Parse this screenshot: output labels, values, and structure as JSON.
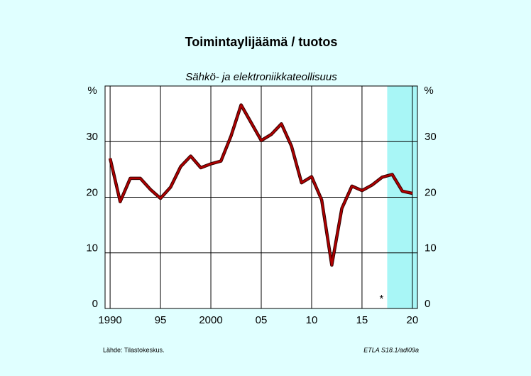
{
  "chart_data": {
    "type": "line",
    "title": "Toimintaylijäämä / tuotos",
    "subtitle": "Sähkö- ja elektroniikkateollisuus",
    "y_unit_left": "%",
    "y_unit_right": "%",
    "annotation": "*",
    "source": "Lähde:  Tilastokeskus.",
    "footnote": "ETLA S18.1/adl09a",
    "x": [
      1990,
      1991,
      1992,
      1993,
      1994,
      1995,
      1996,
      1997,
      1998,
      1999,
      2000,
      2001,
      2002,
      2003,
      2004,
      2005,
      2006,
      2007,
      2008,
      2009,
      2010,
      2011,
      2012,
      2013,
      2014,
      2015,
      2016,
      2017,
      2018,
      2019,
      2020
    ],
    "series": [
      {
        "name": "Toimintaylijäämä / tuotos",
        "color": "#b00000",
        "values": [
          27,
          19.2,
          23.4,
          23.4,
          21.4,
          19.8,
          21.8,
          25.5,
          27.4,
          25.3,
          26,
          26.5,
          31,
          36.6,
          33.4,
          30.2,
          31.3,
          33.2,
          29.2,
          22.6,
          23.7,
          19.5,
          7.8,
          18,
          22,
          21.2,
          22.2,
          23.6,
          24.1,
          21.1,
          20.7
        ]
      }
    ],
    "forecast_xlim": [
      2017.5,
      2020.5
    ],
    "forecast_color": "#a8f6f6",
    "xlim": [
      1989.5,
      2020.5
    ],
    "xticks": [
      1990,
      {
        "value": 1995,
        "label": "95"
      },
      2000,
      {
        "value": 2005,
        "label": "05"
      },
      {
        "value": 2010,
        "label": "10"
      },
      {
        "value": 2015,
        "label": "15"
      },
      {
        "value": 2020,
        "label": "20"
      }
    ],
    "ylim": [
      0,
      40
    ],
    "yticks": [
      0,
      10,
      20,
      30
    ],
    "grid": true
  }
}
